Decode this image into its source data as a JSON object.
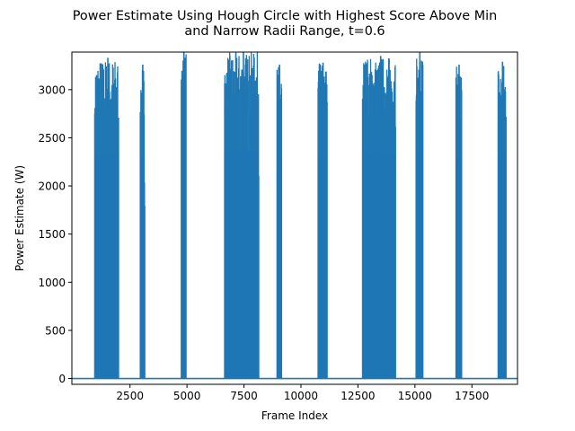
{
  "chart_data": {
    "type": "line",
    "title_lines": [
      "Power Estimate Using Hough Circle with Highest Score Above Min",
      "and Narrow Radii Range, t=0.6"
    ],
    "xlabel": "Frame Index",
    "ylabel": "Power Estimate (W)",
    "xlim": [
      -50,
      19500
    ],
    "ylim": [
      -60,
      3390
    ],
    "xticks": [
      2500,
      5000,
      7500,
      10000,
      12500,
      15000,
      17500
    ],
    "xtick_labels": [
      "2500",
      "5000",
      "7500",
      "10000",
      "12500",
      "15000",
      "17500"
    ],
    "yticks": [
      0,
      500,
      1000,
      1500,
      2000,
      2500,
      3000
    ],
    "ytick_labels": [
      "0",
      "500",
      "1000",
      "1500",
      "2000",
      "2500",
      "3000"
    ],
    "grid": false,
    "legend": "none",
    "baseline_value": 0,
    "series": [
      {
        "color": "#1f77b4",
        "bursts": [
          {
            "x_start": 950,
            "x_end": 2000,
            "peak": 3330
          },
          {
            "x_start": 2950,
            "x_end": 3150,
            "peak": 3260
          },
          {
            "x_start": 4750,
            "x_end": 4960,
            "peak": 3390
          },
          {
            "x_start": 6650,
            "x_end": 8150,
            "peak": 3390
          },
          {
            "x_start": 8950,
            "x_end": 9150,
            "peak": 3260
          },
          {
            "x_start": 10750,
            "x_end": 11150,
            "peak": 3280
          },
          {
            "x_start": 12700,
            "x_end": 14150,
            "peak": 3350
          },
          {
            "x_start": 15050,
            "x_end": 15350,
            "peak": 3390
          },
          {
            "x_start": 16800,
            "x_end": 17050,
            "peak": 3260
          },
          {
            "x_start": 18650,
            "x_end": 19000,
            "peak": 3290
          }
        ]
      }
    ]
  }
}
